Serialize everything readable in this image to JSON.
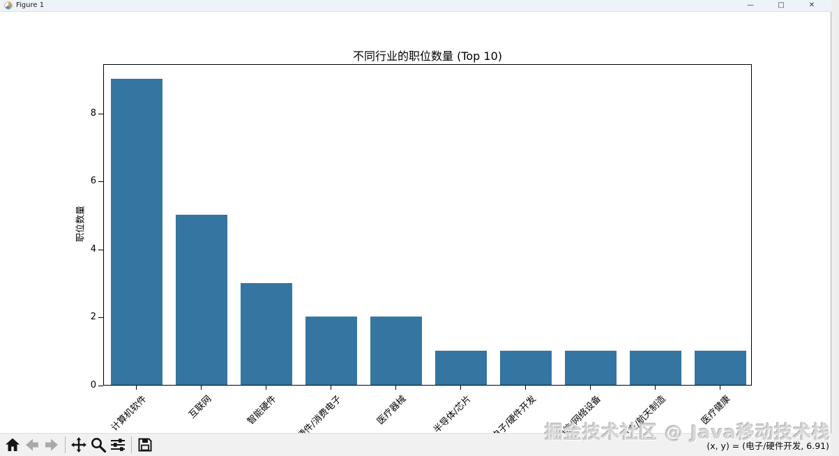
{
  "window": {
    "title": "Figure 1",
    "controls": {
      "minimize": "—",
      "maximize": "□",
      "close": "✕"
    }
  },
  "chart_data": {
    "type": "bar",
    "title": "不同行业的职位数量 (Top 10)",
    "xlabel": "",
    "ylabel": "职位数量",
    "categories": [
      "计算机软件",
      "互联网",
      "智能硬件",
      "硬件/消费电子",
      "医疗器械",
      "半导体/芯片",
      "电子/硬件开发",
      "通信/网络设备",
      "航空/航天制造",
      "医疗健康"
    ],
    "values": [
      9,
      5,
      3,
      2,
      2,
      1,
      1,
      1,
      1,
      1
    ],
    "yticks": [
      0,
      2,
      4,
      6,
      8
    ],
    "ylim": [
      0,
      9.45
    ],
    "bar_color": "#3575a1",
    "x_tick_rotation_deg": 45,
    "grid": false,
    "legend": null
  },
  "toolbar": {
    "buttons": [
      {
        "name": "home",
        "enabled": true
      },
      {
        "name": "back",
        "enabled": false
      },
      {
        "name": "forward",
        "enabled": false
      },
      {
        "name": "pan",
        "enabled": true
      },
      {
        "name": "zoom",
        "enabled": true
      },
      {
        "name": "subplots",
        "enabled": true
      },
      {
        "name": "save",
        "enabled": true
      }
    ],
    "status_text": "(x, y) = (电子/硬件开发, 6.91)"
  },
  "watermark": {
    "text": "掘金技术社区 @ Java移动技术栈"
  }
}
